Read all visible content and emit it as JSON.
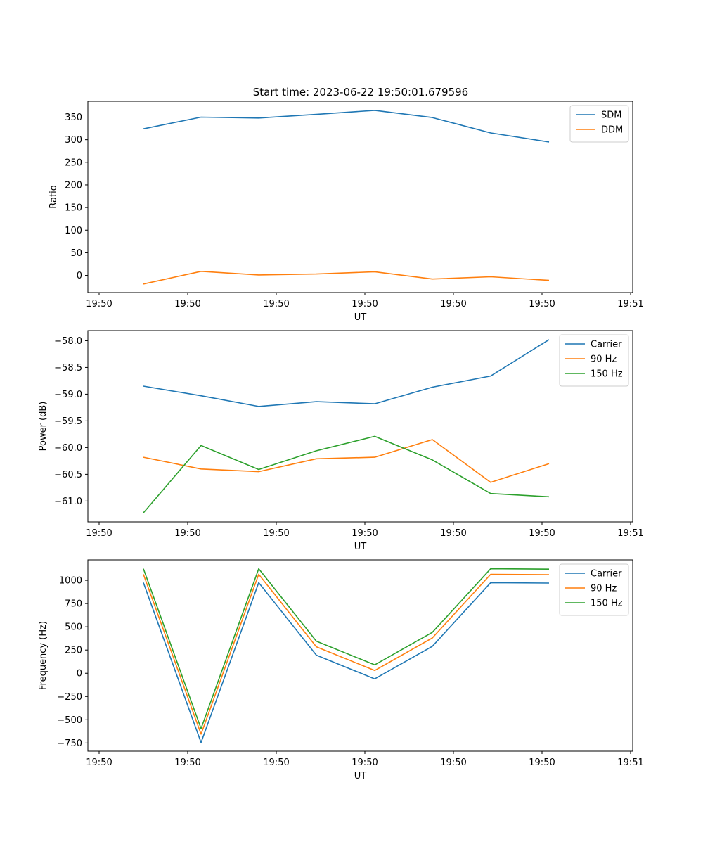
{
  "chart_data": [
    {
      "type": "line",
      "title": "Start time: 2023-06-22 19:50:01.679596",
      "xlabel": "UT",
      "ylabel": "Ratio",
      "x_tick_labels": [
        "19:50",
        "19:50",
        "19:50",
        "19:50",
        "19:50",
        "19:50",
        "19:51"
      ],
      "y_ticks": [
        0,
        50,
        100,
        150,
        200,
        250,
        300,
        350
      ],
      "ylim": [
        -38,
        385
      ],
      "grid": false,
      "legend_position": "upper-right",
      "series": [
        {
          "name": "SDM",
          "color": "#1f77b4",
          "values": [
            324,
            350,
            348,
            356,
            365,
            349,
            315,
            295
          ]
        },
        {
          "name": "DDM",
          "color": "#ff7f0e",
          "values": [
            -19,
            9,
            1,
            3,
            8,
            -8,
            -3,
            -11
          ]
        }
      ]
    },
    {
      "type": "line",
      "title": "",
      "xlabel": "UT",
      "ylabel": "Power (dB)",
      "x_tick_labels": [
        "19:50",
        "19:50",
        "19:50",
        "19:50",
        "19:50",
        "19:50",
        "19:51"
      ],
      "y_ticks": [
        -61.0,
        -60.5,
        -60.0,
        -59.5,
        -59.0,
        -58.5,
        -58.0
      ],
      "ylim": [
        -61.39,
        -57.81
      ],
      "grid": false,
      "legend_position": "upper-right",
      "series": [
        {
          "name": "Carrier",
          "color": "#1f77b4",
          "values": [
            -58.85,
            -59.03,
            -59.23,
            -59.14,
            -59.18,
            -58.87,
            -58.66,
            -57.98
          ]
        },
        {
          "name": "90 Hz",
          "color": "#ff7f0e",
          "values": [
            -60.18,
            -60.4,
            -60.45,
            -60.21,
            -60.18,
            -59.85,
            -60.65,
            -60.3
          ]
        },
        {
          "name": "150 Hz",
          "color": "#2ca02c",
          "values": [
            -61.22,
            -59.96,
            -60.41,
            -60.06,
            -59.79,
            -60.23,
            -60.86,
            -60.92
          ]
        }
      ]
    },
    {
      "type": "line",
      "title": "",
      "xlabel": "UT",
      "ylabel": "Frequency (Hz)",
      "x_tick_labels": [
        "19:50",
        "19:50",
        "19:50",
        "19:50",
        "19:50",
        "19:50",
        "19:51"
      ],
      "y_ticks": [
        -750,
        -500,
        -250,
        0,
        250,
        500,
        750,
        1000
      ],
      "ylim": [
        -838,
        1220
      ],
      "grid": false,
      "legend_position": "upper-right",
      "series": [
        {
          "name": "Carrier",
          "color": "#1f77b4",
          "values": [
            975,
            -745,
            975,
            195,
            -60,
            290,
            975,
            970
          ]
        },
        {
          "name": "90 Hz",
          "color": "#ff7f0e",
          "values": [
            1065,
            -655,
            1065,
            285,
            30,
            380,
            1065,
            1060
          ]
        },
        {
          "name": "150 Hz",
          "color": "#2ca02c",
          "values": [
            1125,
            -595,
            1125,
            345,
            90,
            440,
            1125,
            1120
          ]
        }
      ]
    }
  ]
}
